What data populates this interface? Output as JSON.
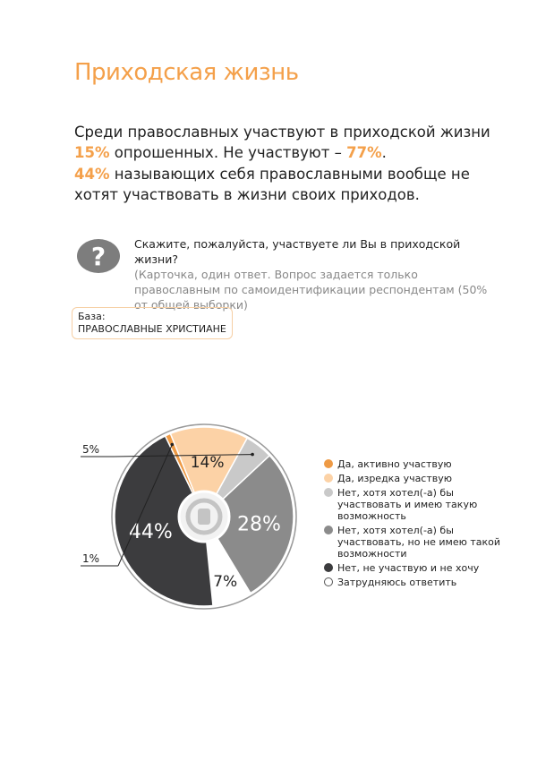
{
  "title": "Приходская жизнь",
  "lead1": {
    "a": "Среди православных участвуют в приходской жизни ",
    "b": "15%",
    "c": " опрошенных. Не участвуют – ",
    "d": "77%",
    "e": "."
  },
  "lead2": {
    "a": "44%",
    "b": " называющих себя православными вообще не хотят участвовать в жизни своих приходов."
  },
  "question": {
    "main": "Скажите, пожалуйста, участвуете ли Вы в приходской жизни?",
    "sub": "(Карточка, один ответ. Вопрос задается только православным по самоидентификации респондентам (50% от общей выборки)",
    "icon": "question-icon"
  },
  "base": {
    "label": "База:",
    "value": "ПРАВОСЛАВНЫЕ ХРИСТИАНЕ"
  },
  "chart_data": {
    "type": "pie",
    "start_angle_deg": 47,
    "slices": [
      {
        "label": "Нет, хотя хотел(-а) бы участвовать, но не имею такой возможности",
        "value": 28,
        "text": "28%",
        "color": "#8b8b8b"
      },
      {
        "label": "Затрудняюсь ответить",
        "value": 7,
        "text": "7%",
        "color": "#ffffff"
      },
      {
        "label": "Нет, не участвую и не хочу",
        "value": 44,
        "text": "44%",
        "color": "#3c3c3e"
      },
      {
        "label": "Да, активно участвую",
        "value": 1,
        "text": "1%",
        "color": "#ee9a45"
      },
      {
        "label": "Да, изредка участвую",
        "value": 14,
        "text": "14%",
        "color": "#fcd2a6"
      },
      {
        "label": "Нет, хотя хотел(-а) бы участвовать и имею такую возможность",
        "value": 5,
        "text": "5%",
        "color": "#c9c9c9"
      }
    ],
    "legend": [
      {
        "label": "Да, активно участвую",
        "color": "#ee9a45"
      },
      {
        "label": "Да, изредка участвую",
        "color": "#fcd2a6"
      },
      {
        "label": "Нет, хотя хотел(-а) бы участвовать и имею такую возможность",
        "color": "#c9c9c9"
      },
      {
        "label": "Нет, хотя хотел(-а) бы участвовать, но не имею такой возможности",
        "color": "#8b8b8b"
      },
      {
        "label": "Нет, не участвую и не хочу",
        "color": "#3c3c3e"
      },
      {
        "label": "Затрудняюсь ответить",
        "color": "#ffffff"
      }
    ]
  }
}
